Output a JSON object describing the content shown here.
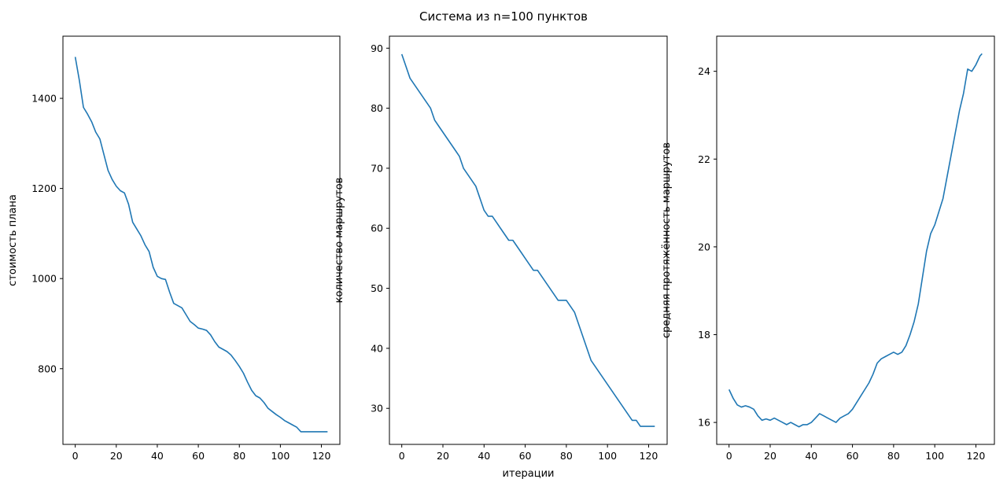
{
  "figure": {
    "suptitle": "Система из n=100 пунктов",
    "line_color": "#1f77b4"
  },
  "chart_data": [
    {
      "type": "line",
      "xlabel": "",
      "ylabel": "стоимость плана",
      "xlim": [
        -6,
        129
      ],
      "ylim": [
        632,
        1538
      ],
      "xticks": [
        0,
        20,
        40,
        60,
        80,
        100,
        120
      ],
      "yticks": [
        800,
        1000,
        1200,
        1400
      ],
      "grid": false,
      "x": [
        0,
        2,
        4,
        6,
        8,
        10,
        12,
        14,
        16,
        18,
        20,
        22,
        24,
        26,
        28,
        30,
        32,
        34,
        36,
        38,
        40,
        42,
        44,
        46,
        48,
        50,
        52,
        54,
        56,
        58,
        60,
        62,
        64,
        66,
        68,
        70,
        72,
        74,
        76,
        78,
        80,
        82,
        84,
        86,
        88,
        90,
        92,
        94,
        96,
        98,
        100,
        102,
        104,
        106,
        108,
        110,
        112,
        114,
        116,
        118,
        120,
        122,
        123
      ],
      "y": [
        1492,
        1440,
        1380,
        1365,
        1348,
        1325,
        1310,
        1275,
        1240,
        1220,
        1205,
        1195,
        1190,
        1165,
        1125,
        1110,
        1095,
        1075,
        1060,
        1025,
        1005,
        1000,
        998,
        970,
        945,
        940,
        935,
        920,
        905,
        898,
        890,
        888,
        885,
        875,
        860,
        848,
        843,
        838,
        830,
        818,
        805,
        790,
        770,
        752,
        740,
        735,
        725,
        712,
        705,
        698,
        692,
        685,
        680,
        675,
        670,
        660,
        660,
        660,
        660,
        660,
        660,
        660,
        660
      ]
    },
    {
      "type": "line",
      "xlabel": "итерации",
      "ylabel": "количество маршрутов",
      "xlim": [
        -6,
        129
      ],
      "ylim": [
        24,
        92
      ],
      "xticks": [
        0,
        20,
        40,
        60,
        80,
        100,
        120
      ],
      "yticks": [
        30,
        40,
        50,
        60,
        70,
        80,
        90
      ],
      "grid": false,
      "x": [
        0,
        2,
        4,
        6,
        8,
        10,
        12,
        14,
        16,
        18,
        20,
        22,
        24,
        26,
        28,
        30,
        32,
        34,
        36,
        38,
        40,
        42,
        44,
        46,
        48,
        50,
        52,
        54,
        56,
        58,
        60,
        62,
        64,
        66,
        68,
        70,
        72,
        74,
        76,
        78,
        80,
        82,
        84,
        86,
        88,
        90,
        92,
        94,
        96,
        98,
        100,
        102,
        104,
        106,
        108,
        110,
        112,
        114,
        116,
        118,
        120,
        122,
        123
      ],
      "y": [
        89,
        87,
        85,
        84,
        83,
        82,
        81,
        80,
        78,
        77,
        76,
        75,
        74,
        73,
        72,
        70,
        69,
        68,
        67,
        65,
        63,
        62,
        62,
        61,
        60,
        59,
        58,
        58,
        57,
        56,
        55,
        54,
        53,
        53,
        52,
        51,
        50,
        49,
        48,
        48,
        48,
        47,
        46,
        44,
        42,
        40,
        38,
        37,
        36,
        35,
        34,
        33,
        32,
        31,
        30,
        29,
        28,
        28,
        27,
        27,
        27,
        27,
        27
      ]
    },
    {
      "type": "line",
      "xlabel": "",
      "ylabel": "средняя протяжённость маршрутов",
      "xlim": [
        -6,
        129
      ],
      "ylim": [
        15.5,
        24.8
      ],
      "xticks": [
        0,
        20,
        40,
        60,
        80,
        100,
        120
      ],
      "yticks": [
        16,
        18,
        20,
        22,
        24
      ],
      "grid": false,
      "x": [
        0,
        2,
        4,
        6,
        8,
        10,
        12,
        14,
        16,
        18,
        20,
        22,
        24,
        26,
        28,
        30,
        32,
        34,
        36,
        38,
        40,
        42,
        44,
        46,
        48,
        50,
        52,
        54,
        56,
        58,
        60,
        62,
        64,
        66,
        68,
        70,
        72,
        74,
        76,
        78,
        80,
        82,
        84,
        86,
        88,
        90,
        92,
        94,
        96,
        98,
        100,
        102,
        104,
        106,
        108,
        110,
        112,
        114,
        116,
        118,
        120,
        122,
        123
      ],
      "y": [
        16.75,
        16.55,
        16.4,
        16.35,
        16.38,
        16.35,
        16.3,
        16.15,
        16.05,
        16.08,
        16.05,
        16.1,
        16.05,
        16.0,
        15.95,
        16.0,
        15.95,
        15.9,
        15.95,
        15.95,
        16.0,
        16.1,
        16.2,
        16.15,
        16.1,
        16.05,
        16.0,
        16.1,
        16.15,
        16.2,
        16.3,
        16.45,
        16.6,
        16.75,
        16.9,
        17.1,
        17.35,
        17.45,
        17.5,
        17.55,
        17.6,
        17.55,
        17.6,
        17.75,
        18.0,
        18.3,
        18.7,
        19.3,
        19.9,
        20.3,
        20.5,
        20.8,
        21.1,
        21.6,
        22.1,
        22.6,
        23.1,
        23.5,
        24.05,
        24.0,
        24.15,
        24.35,
        24.4
      ]
    }
  ]
}
